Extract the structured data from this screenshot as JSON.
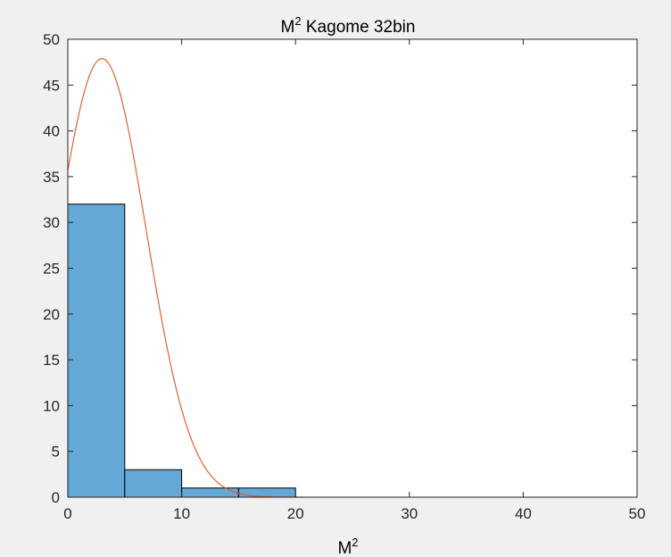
{
  "figure": {
    "background": "#f0f0f0",
    "axes_background": "#ffffff",
    "axes_color": "#262626"
  },
  "chart_data": {
    "type": "bar",
    "subtype": "histogram-with-fit",
    "title": {
      "base": "M",
      "superscript": "2",
      "rest": " Kagome 32bin"
    },
    "xlabel": {
      "base": "M",
      "superscript": "2"
    },
    "ylabel": "",
    "xlim": [
      0,
      50
    ],
    "ylim": [
      0,
      50
    ],
    "xticks": [
      0,
      10,
      20,
      30,
      40,
      50
    ],
    "yticks": [
      0,
      5,
      10,
      15,
      20,
      25,
      30,
      35,
      40,
      45,
      50
    ],
    "grid": false,
    "box": true,
    "bins": [
      {
        "x0": 0,
        "x1": 5,
        "count": 32
      },
      {
        "x0": 5,
        "x1": 10,
        "count": 3
      },
      {
        "x0": 10,
        "x1": 15,
        "count": 1
      },
      {
        "x0": 15,
        "x1": 20,
        "count": 1
      },
      {
        "x0": 20,
        "x1": 25,
        "count": 0
      },
      {
        "x0": 25,
        "x1": 30,
        "count": 0
      },
      {
        "x0": 30,
        "x1": 35,
        "count": 0
      },
      {
        "x0": 35,
        "x1": 40,
        "count": 0
      },
      {
        "x0": 40,
        "x1": 45,
        "count": 0
      },
      {
        "x0": 45,
        "x1": 50,
        "count": 0
      }
    ],
    "bar_color": "#64a8d8",
    "bar_edge_color": "#000000",
    "fit_curve": {
      "type": "normal",
      "mean": 3.0,
      "sigma": 3.9,
      "peak": 47.9,
      "x_start": 0,
      "x_end": 50,
      "color": "#e0541f"
    }
  }
}
